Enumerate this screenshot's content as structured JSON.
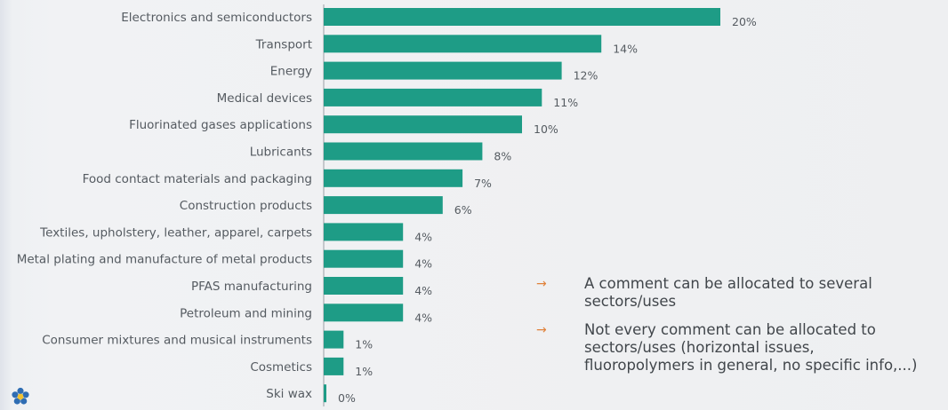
{
  "chart_data": {
    "type": "bar",
    "orientation": "horizontal",
    "categories": [
      "Electronics and semiconductors",
      "Transport",
      "Energy",
      "Medical devices",
      "Fluorinated gases applications",
      "Lubricants",
      "Food contact materials and packaging",
      "Construction products",
      "Textiles, upholstery, leather, apparel, carpets",
      "Metal plating and manufacture of metal products",
      "PFAS manufacturing",
      "Petroleum and mining",
      "Consumer mixtures and musical instruments",
      "Cosmetics",
      "Ski wax"
    ],
    "values": [
      20,
      14,
      12,
      11,
      10,
      8,
      7,
      6,
      4,
      4,
      4,
      4,
      1,
      1,
      0
    ],
    "value_labels": [
      "20%",
      "14%",
      "12%",
      "11%",
      "10%",
      "8%",
      "7%",
      "6%",
      "4%",
      "4%",
      "4%",
      "4%",
      "1%",
      "1%",
      "0%"
    ],
    "unit": "%",
    "xlim": [
      0,
      20
    ],
    "grid": false,
    "legend": "none",
    "bar_color": "#1e9c86"
  },
  "notes": [
    {
      "arrow": "→",
      "text": "A comment can be allocated to several sectors/uses"
    },
    {
      "arrow": "→",
      "text": "Not every comment can be allocated to sectors/uses (horizontal issues, fluoropolymers in general, no specific info,...)"
    }
  ],
  "icon": "flower-logo-icon"
}
